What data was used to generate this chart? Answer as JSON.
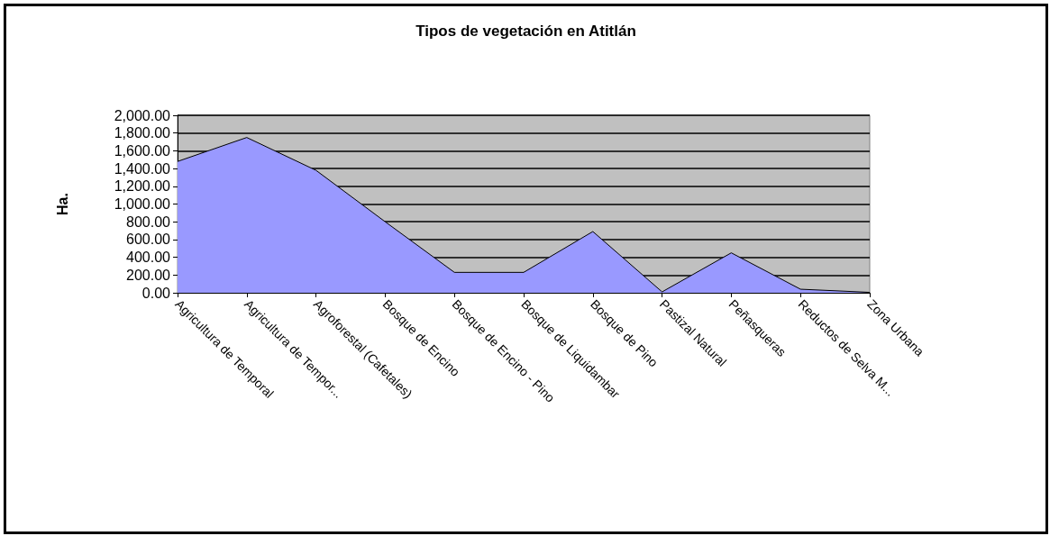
{
  "chart_data": {
    "type": "area",
    "title": "Tipos de vegetación en Atitlán",
    "ylabel": "Ha.",
    "categories": [
      "Agricultura de Temporal",
      "Agricultura de Tempor...",
      "Agroforestal (Cafetales)",
      "Bosque de Encino",
      "Bosque de Encino - Pino",
      "Bosque de Liquidambar",
      "Bosque de Pino",
      "Pastizal Natural",
      "Peñasqueras",
      "Reductos de Selva M...",
      "Zona Urbana"
    ],
    "values": [
      1480,
      1750,
      1380,
      800,
      230,
      230,
      690,
      10,
      450,
      40,
      5
    ],
    "color": "#9999ff",
    "ylim": [
      0,
      2000
    ],
    "yticks": [
      {
        "value": 0,
        "label": "0.00"
      },
      {
        "value": 200,
        "label": "200.00"
      },
      {
        "value": 400,
        "label": "400.00"
      },
      {
        "value": 600,
        "label": "600.00"
      },
      {
        "value": 800,
        "label": "800.00"
      },
      {
        "value": 1000,
        "label": "1,000.00"
      },
      {
        "value": 1200,
        "label": "1,200.00"
      },
      {
        "value": 1400,
        "label": "1,400.00"
      },
      {
        "value": 1600,
        "label": "1,600.00"
      },
      {
        "value": 1800,
        "label": "1,800.00"
      },
      {
        "value": 2000,
        "label": "2,000.00"
      }
    ],
    "grid": "y",
    "marker": "none"
  }
}
